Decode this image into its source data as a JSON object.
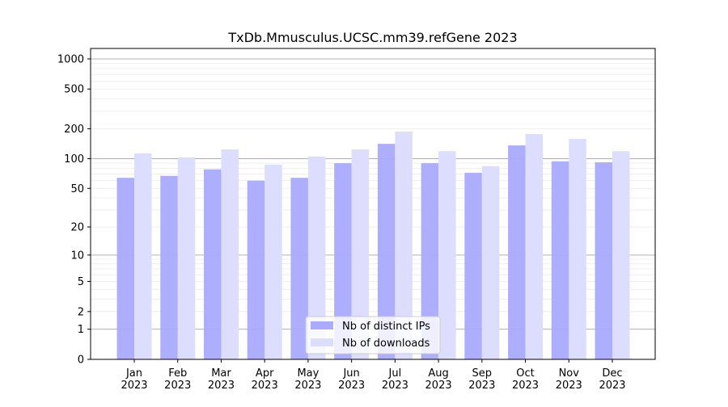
{
  "chart_data": {
    "type": "bar",
    "title": "TxDb.Mmusculus.UCSC.mm39.refGene 2023",
    "xlabel": "",
    "ylabel": "",
    "yscale": "log10(1+y)",
    "ylim": [
      0,
      1300
    ],
    "yticks": [
      0,
      1,
      2,
      5,
      10,
      20,
      50,
      100,
      200,
      500,
      1000
    ],
    "categories": [
      "Jan\n2023",
      "Feb\n2023",
      "Mar\n2023",
      "Apr\n2023",
      "May\n2023",
      "Jun\n2023",
      "Jul\n2023",
      "Aug\n2023",
      "Sep\n2023",
      "Oct\n2023",
      "Nov\n2023",
      "Dec\n2023"
    ],
    "series": [
      {
        "name": "Nb of distinct IPs",
        "color": "#aaaaff",
        "values": [
          64,
          67,
          78,
          60,
          64,
          90,
          141,
          90,
          72,
          136,
          94,
          92
        ]
      },
      {
        "name": "Nb of downloads",
        "color": "#ddddff",
        "values": [
          113,
          103,
          124,
          87,
          105,
          124,
          187,
          119,
          84,
          177,
          158,
          119
        ]
      }
    ],
    "legend": "bottom-center",
    "grid": true
  }
}
